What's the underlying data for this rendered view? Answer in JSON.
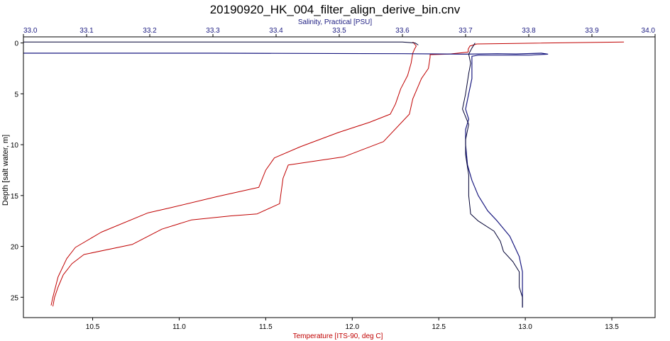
{
  "chart_data": {
    "type": "line",
    "title": "20190920_HK_004_filter_align_derive_bin.cnv",
    "x_top": {
      "label": "Salinity, Practical [PSU]",
      "range": [
        33.0,
        34.0
      ],
      "ticks": [
        "33.0",
        "33.1",
        "33.2",
        "33.3",
        "33.4",
        "33.5",
        "33.6",
        "33.7",
        "33.8",
        "33.9",
        "34.0"
      ],
      "color": "#1a1a80"
    },
    "x_bottom": {
      "label": "Temperature [ITS-90, deg C]",
      "range": [
        10.1,
        13.75
      ],
      "ticks": [
        "10.5",
        "11.0",
        "11.5",
        "12.0",
        "12.5",
        "13.0",
        "13.5"
      ],
      "color": "#c00000"
    },
    "y": {
      "label": "Depth [salt water, m]",
      "range": [
        -0.6,
        27.0
      ],
      "inverted": true,
      "ticks": [
        "0",
        "5",
        "10",
        "15",
        "20",
        "25"
      ]
    },
    "grid": false,
    "series": [
      {
        "axis": "bottom",
        "color": "#c00000",
        "points": [
          [
            13.57,
            -0.1
          ],
          [
            12.72,
            0.1
          ],
          [
            12.68,
            0.3
          ],
          [
            12.67,
            0.6
          ],
          [
            12.67,
            0.9
          ],
          [
            12.55,
            1.1
          ],
          [
            12.45,
            1.15
          ],
          [
            12.45,
            1.4
          ],
          [
            12.44,
            2.5
          ],
          [
            12.4,
            3.5
          ],
          [
            12.35,
            5.5
          ],
          [
            12.33,
            7.0
          ],
          [
            12.18,
            9.7
          ],
          [
            11.95,
            11.2
          ],
          [
            11.63,
            12.0
          ],
          [
            11.6,
            13.3
          ],
          [
            11.58,
            15.8
          ],
          [
            11.45,
            16.8
          ],
          [
            11.3,
            17.0
          ],
          [
            11.07,
            17.4
          ],
          [
            10.9,
            18.3
          ],
          [
            10.73,
            19.8
          ],
          [
            10.45,
            20.8
          ],
          [
            10.38,
            21.7
          ],
          [
            10.33,
            22.8
          ],
          [
            10.3,
            24.0
          ],
          [
            10.28,
            25.0
          ],
          [
            10.27,
            25.9
          ]
        ]
      },
      {
        "axis": "bottom",
        "color": "#c00000",
        "points": [
          [
            12.35,
            -0.1
          ],
          [
            12.37,
            0.3
          ],
          [
            12.36,
            0.6
          ],
          [
            12.35,
            1.0
          ],
          [
            12.34,
            2.0
          ],
          [
            12.32,
            3.2
          ],
          [
            12.28,
            4.5
          ],
          [
            12.25,
            6.0
          ],
          [
            12.22,
            7.0
          ],
          [
            12.1,
            7.8
          ],
          [
            11.92,
            8.8
          ],
          [
            11.7,
            10.2
          ],
          [
            11.55,
            11.3
          ],
          [
            11.5,
            12.5
          ],
          [
            11.46,
            14.2
          ],
          [
            11.22,
            15.1
          ],
          [
            10.95,
            16.2
          ],
          [
            10.82,
            16.7
          ],
          [
            10.55,
            18.6
          ],
          [
            10.4,
            20.1
          ],
          [
            10.35,
            21.2
          ],
          [
            10.3,
            23.0
          ],
          [
            10.27,
            25.0
          ],
          [
            10.26,
            25.8
          ]
        ]
      },
      {
        "axis": "top",
        "color": "#000033",
        "points": [
          [
            33.0,
            -0.1
          ],
          [
            33.6,
            -0.1
          ],
          [
            33.62,
            0.0
          ],
          [
            33.625,
            0.2
          ]
        ]
      },
      {
        "axis": "top",
        "color": "#1a1a80",
        "points": [
          [
            33.0,
            1.0
          ],
          [
            33.3,
            1.0
          ],
          [
            33.6,
            1.05
          ],
          [
            33.66,
            1.08
          ],
          [
            33.7,
            1.1
          ],
          [
            33.75,
            1.05
          ],
          [
            33.78,
            1.08
          ],
          [
            33.82,
            1.0
          ],
          [
            33.83,
            1.1
          ],
          [
            33.8,
            1.2
          ],
          [
            33.72,
            1.2
          ],
          [
            33.71,
            1.3
          ],
          [
            33.71,
            2.0
          ],
          [
            33.71,
            3.5
          ],
          [
            33.705,
            5.0
          ],
          [
            33.7,
            6.5
          ],
          [
            33.705,
            7.5
          ],
          [
            33.7,
            8.5
          ],
          [
            33.7,
            10.0
          ],
          [
            33.703,
            12.0
          ],
          [
            33.71,
            13.5
          ],
          [
            33.72,
            15.0
          ],
          [
            33.735,
            16.5
          ],
          [
            33.75,
            17.5
          ],
          [
            33.77,
            19.0
          ],
          [
            33.785,
            21.0
          ],
          [
            33.79,
            22.5
          ],
          [
            33.79,
            24.5
          ],
          [
            33.79,
            26.0
          ]
        ]
      },
      {
        "axis": "top",
        "color": "#000033",
        "points": [
          [
            33.715,
            0.0
          ],
          [
            33.71,
            0.5
          ],
          [
            33.705,
            1.1
          ],
          [
            33.708,
            2.0
          ],
          [
            33.705,
            3.0
          ],
          [
            33.7,
            5.0
          ],
          [
            33.695,
            6.5
          ],
          [
            33.705,
            8.0
          ],
          [
            33.7,
            9.5
          ],
          [
            33.7,
            11.0
          ],
          [
            33.705,
            13.0
          ],
          [
            33.705,
            15.0
          ],
          [
            33.708,
            16.8
          ],
          [
            33.72,
            17.5
          ],
          [
            33.745,
            18.5
          ],
          [
            33.755,
            19.5
          ],
          [
            33.76,
            20.5
          ],
          [
            33.775,
            21.5
          ],
          [
            33.785,
            22.5
          ],
          [
            33.785,
            24.0
          ],
          [
            33.79,
            25.0
          ],
          [
            33.79,
            26.0
          ]
        ]
      }
    ]
  }
}
